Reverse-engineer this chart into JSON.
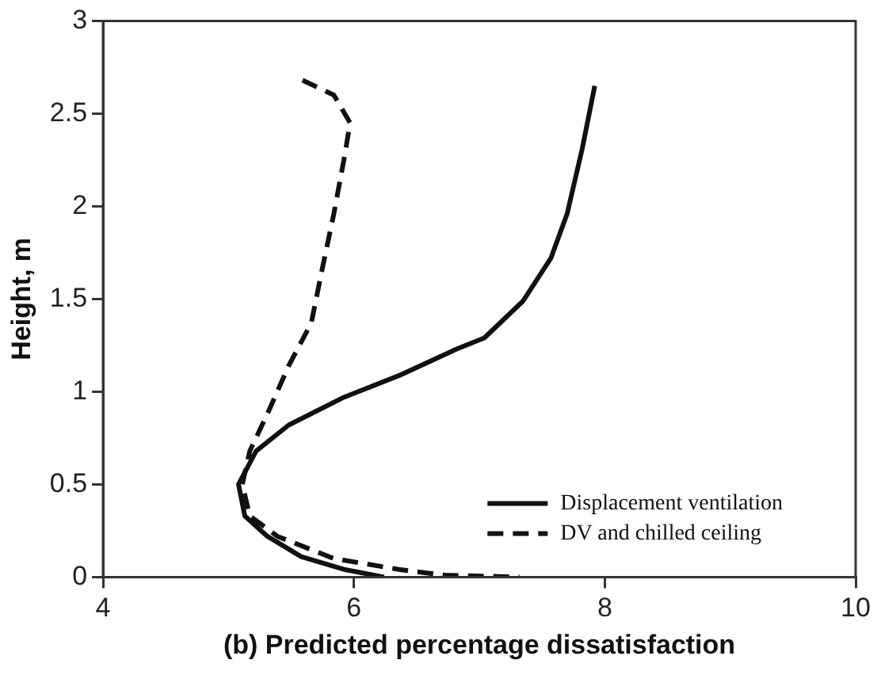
{
  "chart_data": {
    "type": "line",
    "xlabel": "(b) Predicted percentage dissatisfaction",
    "ylabel": "Height, m",
    "xlim": [
      4,
      10
    ],
    "xticks": [
      4,
      6,
      8,
      10
    ],
    "ylim": [
      0,
      3
    ],
    "yticks": [
      0,
      0.5,
      1,
      1.5,
      2,
      2.5,
      3
    ],
    "grid": false,
    "legend": "bottom right",
    "marker": "none",
    "series": [
      {
        "name": "Displacement ventilation",
        "color": "#111111",
        "line_style": "solid",
        "x": [
          7.92,
          7.82,
          7.7,
          7.57,
          7.35,
          7.04,
          6.82,
          6.37,
          5.92,
          5.48,
          5.22,
          5.08,
          5.13,
          5.31,
          5.58,
          5.93,
          6.24
        ],
        "values": [
          2.65,
          2.31,
          1.96,
          1.72,
          1.49,
          1.29,
          1.23,
          1.09,
          0.97,
          0.82,
          0.68,
          0.5,
          0.33,
          0.22,
          0.11,
          0.04,
          0
        ]
      },
      {
        "name": "DV and chilled ceiling",
        "color": "#111111",
        "line_style": "dashed",
        "x": [
          5.59,
          5.84,
          5.97,
          5.92,
          5.84,
          5.75,
          5.66,
          5.48,
          5.31,
          5.17,
          5.11,
          5.17,
          5.39,
          5.84,
          6.37,
          6.73,
          7.32
        ],
        "values": [
          2.68,
          2.6,
          2.45,
          2.25,
          1.96,
          1.67,
          1.37,
          1.14,
          0.88,
          0.68,
          0.5,
          0.33,
          0.22,
          0.1,
          0.04,
          0.01,
          0
        ]
      }
    ]
  }
}
